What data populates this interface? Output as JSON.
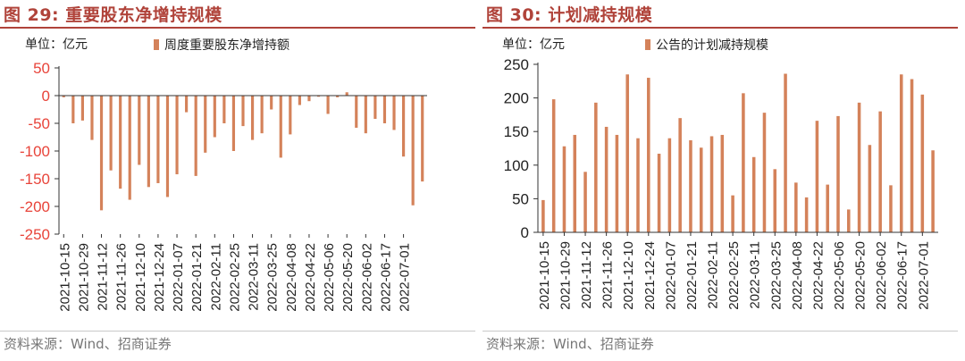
{
  "figures": [
    {
      "title": "图 29:  重要股东净增持规模",
      "source": "资料来源：Wind、招商证券",
      "unit_label": "单位：亿元",
      "legend_label": "周度重要股东净增持额"
    },
    {
      "title": "图 30:  计划减持规模",
      "source": "资料来源：Wind、招商证券",
      "unit_label": "单位：亿元",
      "legend_label": "公告的计划减持规模"
    }
  ],
  "colors": {
    "bar": "#d4825a",
    "title": "#b0433a",
    "axis": "#333333"
  },
  "chart_data": [
    {
      "type": "bar",
      "series": [
        {
          "name": "周度重要股东净增持额",
          "values": [
            -3,
            -50,
            -45,
            -80,
            -207,
            -135,
            -168,
            -188,
            -125,
            -165,
            -158,
            -183,
            -142,
            -30,
            -145,
            -103,
            -75,
            -50,
            -100,
            -55,
            -80,
            -68,
            -25,
            -112,
            -70,
            -17,
            -10,
            -2,
            -33,
            -3,
            6,
            -58,
            -68,
            -42,
            -50,
            -62,
            -110,
            -198,
            -155
          ]
        }
      ],
      "x_tick_labels": [
        "2021-10-15",
        "2021-10-29",
        "2021-11-12",
        "2021-11-26",
        "2021-12-10",
        "2021-12-24",
        "2022-01-07",
        "2022-01-21",
        "2022-02-11",
        "2022-02-25",
        "2022-03-11",
        "2022-03-25",
        "2022-04-08",
        "2022-04-22",
        "2022-05-06",
        "2022-05-20",
        "2022-06-02",
        "2022-06-17",
        "2022-07-01"
      ],
      "y_ticks": [
        50,
        0,
        -50,
        -100,
        -150,
        -200,
        -250
      ],
      "ylim": [
        -250,
        50
      ],
      "y_tick_color": "#e8443a",
      "grid": false
    },
    {
      "type": "bar",
      "series": [
        {
          "name": "公告的计划减持规模",
          "values": [
            48,
            198,
            128,
            145,
            90,
            193,
            157,
            145,
            235,
            140,
            230,
            117,
            140,
            170,
            137,
            126,
            143,
            145,
            55,
            207,
            112,
            178,
            94,
            236,
            74,
            52,
            166,
            71,
            173,
            34,
            193,
            130,
            180,
            70,
            235,
            228,
            205,
            122
          ]
        }
      ],
      "x_tick_labels": [
        "2021-10-15",
        "2021-10-29",
        "2021-11-12",
        "2021-11-26",
        "2021-12-10",
        "2021-12-24",
        "2022-01-07",
        "2022-01-21",
        "2022-02-11",
        "2022-02-25",
        "2022-03-11",
        "2022-03-25",
        "2022-04-08",
        "2022-04-22",
        "2022-05-06",
        "2022-05-20",
        "2022-06-02",
        "2022-06-17",
        "2022-07-01"
      ],
      "y_ticks": [
        250,
        200,
        150,
        100,
        50,
        0
      ],
      "ylim": [
        0,
        250
      ],
      "y_tick_color": "#222222",
      "grid": false
    }
  ]
}
